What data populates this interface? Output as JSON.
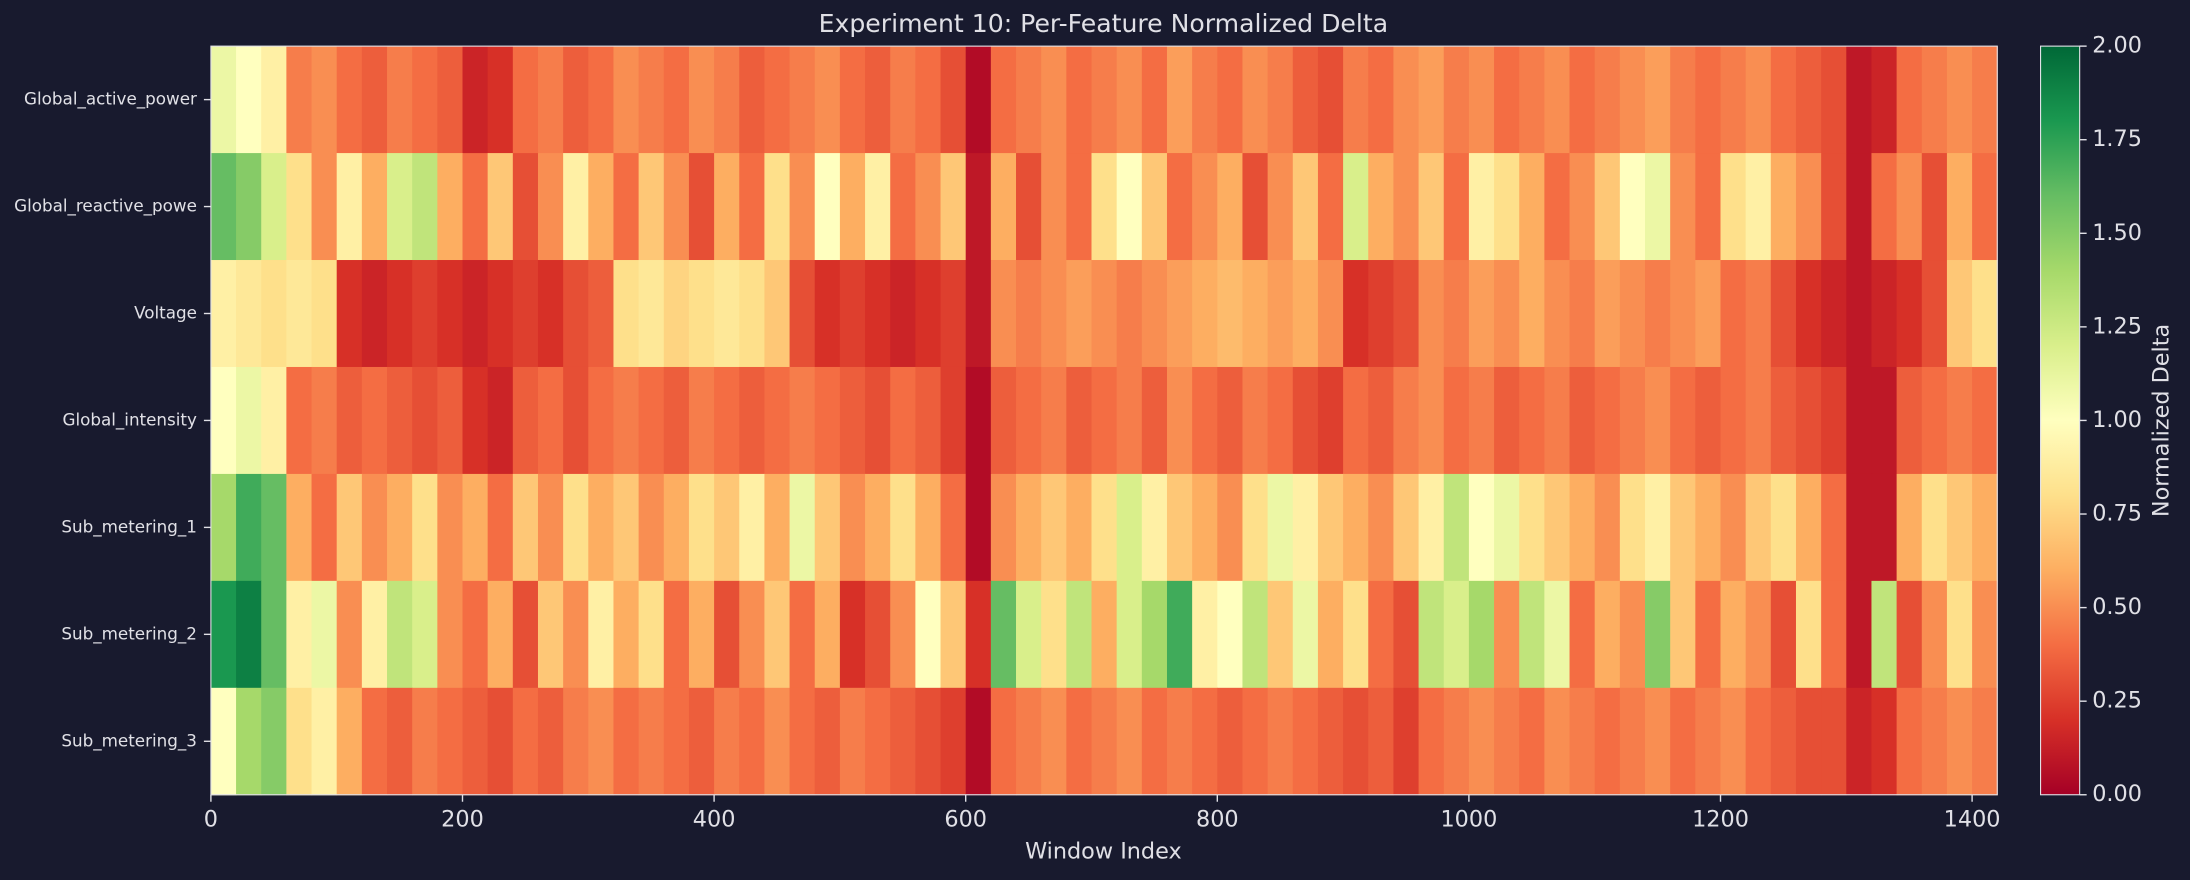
{
  "chart_data": {
    "type": "heatmap",
    "title": "Experiment 10: Per-Feature Normalized Delta",
    "x_label": "Window Index",
    "colorbar_label": "Normalized Delta",
    "colormap": "RdYlGn",
    "xlim": [
      0,
      1420
    ],
    "xticks": [
      0,
      200,
      400,
      600,
      800,
      1000,
      1200,
      1400
    ],
    "clim": [
      0,
      2
    ],
    "cticks": [
      {
        "value": 0,
        "label": "0.00"
      },
      {
        "value": 0.25,
        "label": "0.25"
      },
      {
        "value": 0.5,
        "label": "0.50"
      },
      {
        "value": 0.75,
        "label": "0.75"
      },
      {
        "value": 1,
        "label": "1.00"
      },
      {
        "value": 1.25,
        "label": "1.25"
      },
      {
        "value": 1.5,
        "label": "1.50"
      },
      {
        "value": 1.75,
        "label": "1.75"
      },
      {
        "value": 2,
        "label": "2.00"
      }
    ],
    "x_bins": [
      0,
      20,
      40,
      60,
      80,
      100,
      120,
      140,
      160,
      180,
      200,
      220,
      240,
      260,
      280,
      300,
      320,
      340,
      360,
      380,
      400,
      420,
      440,
      460,
      480,
      500,
      520,
      540,
      560,
      580,
      600,
      620,
      640,
      660,
      680,
      700,
      720,
      740,
      760,
      780,
      800,
      820,
      840,
      860,
      880,
      900,
      920,
      940,
      960,
      980,
      1000,
      1020,
      1040,
      1060,
      1080,
      1100,
      1120,
      1140,
      1160,
      1180,
      1200,
      1220,
      1240,
      1260,
      1280,
      1300,
      1320,
      1340,
      1360,
      1380,
      1400,
      1420
    ],
    "series": [
      {
        "name": "Global_active_power",
        "values": [
          1.1,
          1.0,
          0.9,
          0.45,
          0.5,
          0.4,
          0.35,
          0.45,
          0.4,
          0.35,
          0.15,
          0.2,
          0.4,
          0.45,
          0.35,
          0.4,
          0.5,
          0.45,
          0.4,
          0.5,
          0.45,
          0.35,
          0.4,
          0.45,
          0.5,
          0.4,
          0.35,
          0.45,
          0.4,
          0.3,
          0.05,
          0.4,
          0.45,
          0.5,
          0.4,
          0.45,
          0.5,
          0.4,
          0.55,
          0.45,
          0.4,
          0.5,
          0.45,
          0.35,
          0.3,
          0.45,
          0.4,
          0.5,
          0.55,
          0.45,
          0.5,
          0.4,
          0.45,
          0.5,
          0.4,
          0.45,
          0.5,
          0.55,
          0.45,
          0.4,
          0.45,
          0.5,
          0.4,
          0.35,
          0.3,
          0.1,
          0.15,
          0.4,
          0.45,
          0.5,
          0.45
        ]
      },
      {
        "name": "Global_reactive_powe",
        "values": [
          1.6,
          1.5,
          1.2,
          0.8,
          0.5,
          0.9,
          0.6,
          1.2,
          1.3,
          0.6,
          0.4,
          0.7,
          0.3,
          0.5,
          0.9,
          0.6,
          0.4,
          0.7,
          0.5,
          0.3,
          0.6,
          0.4,
          0.8,
          0.5,
          1.0,
          0.6,
          0.9,
          0.4,
          0.5,
          0.7,
          0.1,
          0.6,
          0.3,
          0.5,
          0.4,
          0.8,
          1.0,
          0.7,
          0.4,
          0.5,
          0.6,
          0.3,
          0.5,
          0.7,
          0.4,
          1.2,
          0.6,
          0.5,
          0.7,
          0.4,
          0.9,
          0.8,
          0.6,
          0.4,
          0.5,
          0.7,
          1.0,
          1.1,
          0.5,
          0.4,
          0.8,
          0.9,
          0.6,
          0.5,
          0.3,
          0.1,
          0.4,
          0.5,
          0.3,
          0.6,
          0.4
        ]
      },
      {
        "name": "Voltage",
        "values": [
          0.9,
          0.85,
          0.8,
          0.85,
          0.8,
          0.2,
          0.15,
          0.2,
          0.25,
          0.2,
          0.15,
          0.2,
          0.25,
          0.2,
          0.3,
          0.35,
          0.8,
          0.85,
          0.75,
          0.8,
          0.85,
          0.8,
          0.7,
          0.3,
          0.2,
          0.25,
          0.2,
          0.15,
          0.2,
          0.25,
          0.1,
          0.5,
          0.45,
          0.5,
          0.55,
          0.5,
          0.45,
          0.5,
          0.55,
          0.6,
          0.65,
          0.6,
          0.55,
          0.6,
          0.5,
          0.2,
          0.25,
          0.3,
          0.5,
          0.45,
          0.55,
          0.5,
          0.6,
          0.5,
          0.45,
          0.55,
          0.5,
          0.45,
          0.5,
          0.55,
          0.4,
          0.45,
          0.3,
          0.2,
          0.15,
          0.1,
          0.15,
          0.2,
          0.3,
          0.7,
          0.8
        ]
      },
      {
        "name": "Global_intensity",
        "values": [
          1.0,
          1.1,
          0.9,
          0.4,
          0.45,
          0.35,
          0.4,
          0.35,
          0.3,
          0.35,
          0.2,
          0.15,
          0.35,
          0.4,
          0.3,
          0.4,
          0.45,
          0.4,
          0.35,
          0.45,
          0.4,
          0.35,
          0.4,
          0.45,
          0.4,
          0.35,
          0.3,
          0.4,
          0.35,
          0.25,
          0.05,
          0.35,
          0.4,
          0.45,
          0.35,
          0.4,
          0.45,
          0.35,
          0.5,
          0.4,
          0.35,
          0.45,
          0.4,
          0.3,
          0.25,
          0.4,
          0.35,
          0.45,
          0.5,
          0.4,
          0.45,
          0.35,
          0.4,
          0.45,
          0.35,
          0.4,
          0.45,
          0.5,
          0.4,
          0.35,
          0.4,
          0.45,
          0.35,
          0.3,
          0.25,
          0.1,
          0.1,
          0.35,
          0.4,
          0.45,
          0.4
        ]
      },
      {
        "name": "Sub_metering_1",
        "values": [
          1.4,
          1.7,
          1.6,
          0.6,
          0.4,
          0.7,
          0.5,
          0.6,
          0.8,
          0.5,
          0.6,
          0.4,
          0.7,
          0.5,
          0.8,
          0.6,
          0.7,
          0.5,
          0.6,
          0.8,
          0.7,
          0.9,
          0.6,
          1.1,
          0.7,
          0.5,
          0.6,
          0.8,
          0.6,
          0.4,
          0.05,
          0.5,
          0.6,
          0.7,
          0.6,
          0.8,
          1.2,
          0.9,
          0.7,
          0.6,
          0.5,
          0.8,
          1.1,
          0.9,
          0.7,
          0.6,
          0.5,
          0.7,
          0.9,
          1.3,
          1.0,
          1.1,
          0.8,
          0.7,
          0.6,
          0.5,
          0.8,
          0.9,
          0.7,
          0.6,
          0.5,
          0.7,
          0.8,
          0.6,
          0.4,
          0.1,
          0.1,
          0.6,
          0.8,
          0.7,
          0.6
        ]
      },
      {
        "name": "Sub_metering_2",
        "values": [
          1.8,
          1.9,
          1.6,
          0.9,
          1.1,
          0.5,
          0.9,
          1.3,
          1.2,
          0.5,
          0.4,
          0.6,
          0.3,
          0.7,
          0.5,
          0.9,
          0.6,
          0.8,
          0.4,
          0.6,
          0.3,
          0.5,
          0.7,
          0.4,
          0.6,
          0.2,
          0.3,
          0.5,
          1.0,
          0.7,
          0.2,
          1.6,
          1.2,
          0.8,
          1.3,
          0.6,
          1.2,
          1.4,
          1.7,
          0.9,
          1.0,
          1.3,
          0.7,
          1.1,
          0.6,
          0.8,
          0.4,
          0.3,
          1.3,
          1.2,
          1.4,
          0.5,
          1.3,
          1.1,
          0.4,
          0.6,
          0.5,
          1.5,
          0.7,
          0.4,
          0.6,
          0.5,
          0.3,
          0.8,
          0.4,
          0.1,
          1.3,
          0.3,
          0.5,
          0.8,
          0.5
        ]
      },
      {
        "name": "Sub_metering_3",
        "values": [
          1.0,
          1.4,
          1.5,
          0.8,
          0.9,
          0.6,
          0.4,
          0.35,
          0.45,
          0.4,
          0.35,
          0.3,
          0.4,
          0.35,
          0.45,
          0.5,
          0.4,
          0.45,
          0.4,
          0.35,
          0.45,
          0.4,
          0.5,
          0.4,
          0.35,
          0.45,
          0.4,
          0.35,
          0.3,
          0.25,
          0.05,
          0.4,
          0.45,
          0.5,
          0.4,
          0.45,
          0.5,
          0.4,
          0.45,
          0.4,
          0.35,
          0.4,
          0.45,
          0.4,
          0.35,
          0.3,
          0.35,
          0.25,
          0.4,
          0.45,
          0.5,
          0.45,
          0.4,
          0.5,
          0.45,
          0.4,
          0.45,
          0.5,
          0.4,
          0.45,
          0.5,
          0.4,
          0.35,
          0.3,
          0.3,
          0.15,
          0.2,
          0.4,
          0.45,
          0.5,
          0.45
        ]
      }
    ]
  }
}
